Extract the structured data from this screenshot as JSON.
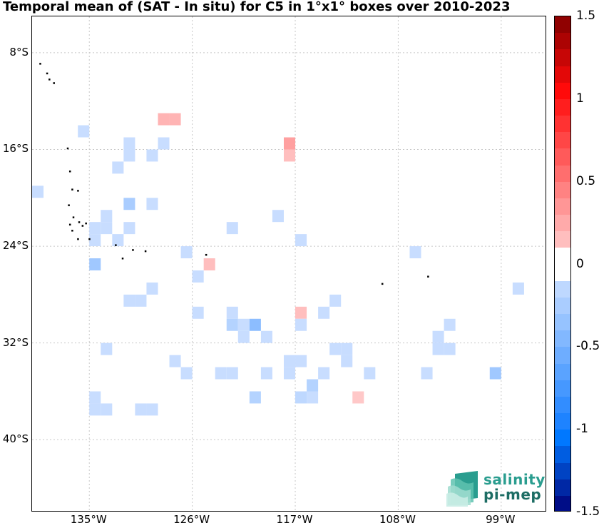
{
  "title": "Temporal mean of (SAT - In situ) for C5 in 1°x1° boxes over 2010-2023",
  "map": {
    "lon_range": [
      -140,
      -95
    ],
    "lat_range": [
      -46,
      -5
    ],
    "y_ticks": [
      {
        "lat": -8,
        "label": "8°S"
      },
      {
        "lat": -16,
        "label": "16°S"
      },
      {
        "lat": -24,
        "label": "24°S"
      },
      {
        "lat": -32,
        "label": "32°S"
      },
      {
        "lat": -40,
        "label": "40°S"
      }
    ],
    "x_ticks": [
      {
        "lon": -135,
        "label": "135°W"
      },
      {
        "lon": -126,
        "label": "126°W"
      },
      {
        "lon": -117,
        "label": "117°W"
      },
      {
        "lon": -108,
        "label": "108°W"
      },
      {
        "lon": -99,
        "label": "99°W"
      }
    ],
    "grid": true,
    "boxes": [
      {
        "lon": -128.5,
        "lat": -13.5,
        "value": 0.2
      },
      {
        "lon": -127.5,
        "lat": -13.5,
        "value": 0.2
      },
      {
        "lon": -135.5,
        "lat": -14.5,
        "value": -0.1
      },
      {
        "lon": -117.5,
        "lat": -15.5,
        "value": 0.3
      },
      {
        "lon": -117.5,
        "lat": -16.5,
        "value": 0.15
      },
      {
        "lon": -128.5,
        "lat": -15.5,
        "value": -0.1
      },
      {
        "lon": -131.5,
        "lat": -15.5,
        "value": -0.1
      },
      {
        "lon": -129.5,
        "lat": -16.5,
        "value": -0.1
      },
      {
        "lon": -131.5,
        "lat": -16.5,
        "value": -0.1
      },
      {
        "lon": -132.5,
        "lat": -17.5,
        "value": -0.1
      },
      {
        "lon": -139.5,
        "lat": -19.5,
        "value": -0.1
      },
      {
        "lon": -131.5,
        "lat": -20.5,
        "value": -0.25
      },
      {
        "lon": -129.5,
        "lat": -20.5,
        "value": -0.1
      },
      {
        "lon": -133.5,
        "lat": -21.5,
        "value": -0.1
      },
      {
        "lon": -118.5,
        "lat": -21.5,
        "value": -0.1
      },
      {
        "lon": -134.5,
        "lat": -22.5,
        "value": -0.1
      },
      {
        "lon": -133.5,
        "lat": -22.5,
        "value": -0.1
      },
      {
        "lon": -131.5,
        "lat": -22.5,
        "value": -0.1
      },
      {
        "lon": -122.5,
        "lat": -22.5,
        "value": -0.1
      },
      {
        "lon": -134.5,
        "lat": -23.5,
        "value": -0.1
      },
      {
        "lon": -132.5,
        "lat": -23.5,
        "value": -0.1
      },
      {
        "lon": -116.5,
        "lat": -23.5,
        "value": -0.1
      },
      {
        "lon": -126.5,
        "lat": -24.5,
        "value": -0.1
      },
      {
        "lon": -106.5,
        "lat": -24.5,
        "value": -0.1
      },
      {
        "lon": -134.5,
        "lat": -25.5,
        "value": -0.3
      },
      {
        "lon": -124.5,
        "lat": -25.5,
        "value": 0.15
      },
      {
        "lon": -125.5,
        "lat": -26.5,
        "value": -0.1
      },
      {
        "lon": -129.5,
        "lat": -27.5,
        "value": -0.1
      },
      {
        "lon": -97.5,
        "lat": -27.5,
        "value": -0.1
      },
      {
        "lon": -131.5,
        "lat": -28.5,
        "value": -0.1
      },
      {
        "lon": -130.5,
        "lat": -28.5,
        "value": -0.1
      },
      {
        "lon": -113.5,
        "lat": -28.5,
        "value": -0.1
      },
      {
        "lon": -125.5,
        "lat": -29.5,
        "value": -0.1
      },
      {
        "lon": -122.5,
        "lat": -29.5,
        "value": -0.1
      },
      {
        "lon": -116.5,
        "lat": -29.5,
        "value": 0.15
      },
      {
        "lon": -114.5,
        "lat": -29.5,
        "value": -0.1
      },
      {
        "lon": -122.5,
        "lat": -30.5,
        "value": -0.2
      },
      {
        "lon": -121.5,
        "lat": -30.5,
        "value": -0.1
      },
      {
        "lon": -120.5,
        "lat": -30.5,
        "value": -0.4
      },
      {
        "lon": -116.5,
        "lat": -30.5,
        "value": -0.1
      },
      {
        "lon": -103.5,
        "lat": -30.5,
        "value": -0.1
      },
      {
        "lon": -121.5,
        "lat": -31.5,
        "value": -0.1
      },
      {
        "lon": -119.5,
        "lat": -31.5,
        "value": -0.1
      },
      {
        "lon": -104.5,
        "lat": -31.5,
        "value": -0.1
      },
      {
        "lon": -133.5,
        "lat": -32.5,
        "value": -0.1
      },
      {
        "lon": -113.5,
        "lat": -32.5,
        "value": -0.1
      },
      {
        "lon": -112.5,
        "lat": -32.5,
        "value": -0.1
      },
      {
        "lon": -104.5,
        "lat": -32.5,
        "value": -0.1
      },
      {
        "lon": -103.5,
        "lat": -32.5,
        "value": -0.1
      },
      {
        "lon": -127.5,
        "lat": -33.5,
        "value": -0.1
      },
      {
        "lon": -117.5,
        "lat": -33.5,
        "value": -0.1
      },
      {
        "lon": -116.5,
        "lat": -33.5,
        "value": -0.1
      },
      {
        "lon": -112.5,
        "lat": -33.5,
        "value": -0.1
      },
      {
        "lon": -126.5,
        "lat": -34.5,
        "value": -0.1
      },
      {
        "lon": -123.5,
        "lat": -34.5,
        "value": -0.1
      },
      {
        "lon": -122.5,
        "lat": -34.5,
        "value": -0.1
      },
      {
        "lon": -119.5,
        "lat": -34.5,
        "value": -0.1
      },
      {
        "lon": -117.5,
        "lat": -34.5,
        "value": -0.1
      },
      {
        "lon": -114.5,
        "lat": -34.5,
        "value": -0.1
      },
      {
        "lon": -110.5,
        "lat": -34.5,
        "value": -0.1
      },
      {
        "lon": -105.5,
        "lat": -34.5,
        "value": -0.1
      },
      {
        "lon": -99.5,
        "lat": -34.5,
        "value": -0.3
      },
      {
        "lon": -115.5,
        "lat": -35.5,
        "value": -0.2
      },
      {
        "lon": -134.5,
        "lat": -36.5,
        "value": -0.1
      },
      {
        "lon": -120.5,
        "lat": -36.5,
        "value": -0.2
      },
      {
        "lon": -116.5,
        "lat": -36.5,
        "value": -0.15
      },
      {
        "lon": -115.5,
        "lat": -36.5,
        "value": -0.1
      },
      {
        "lon": -111.5,
        "lat": -36.5,
        "value": 0.1
      },
      {
        "lon": -134.5,
        "lat": -37.5,
        "value": -0.1
      },
      {
        "lon": -133.5,
        "lat": -37.5,
        "value": -0.1
      },
      {
        "lon": -130.5,
        "lat": -37.5,
        "value": -0.1
      },
      {
        "lon": -129.5,
        "lat": -37.5,
        "value": -0.1
      }
    ],
    "land_dots": [
      [
        -139.3,
        -8.9
      ],
      [
        -138.7,
        -9.7
      ],
      [
        -138.5,
        -10.2
      ],
      [
        -138.1,
        -10.5
      ],
      [
        -136.9,
        -15.9
      ],
      [
        -136.7,
        -17.8
      ],
      [
        -136.5,
        -19.3
      ],
      [
        -136.0,
        -19.4
      ],
      [
        -136.8,
        -20.6
      ],
      [
        -136.4,
        -21.6
      ],
      [
        -136.7,
        -22.2
      ],
      [
        -136.5,
        -22.7
      ],
      [
        -135.9,
        -22.0
      ],
      [
        -135.6,
        -22.3
      ],
      [
        -135.3,
        -22.1
      ],
      [
        -136.0,
        -23.4
      ],
      [
        -135.0,
        -23.4
      ],
      [
        -132.7,
        -23.9
      ],
      [
        -131.2,
        -24.3
      ],
      [
        -130.1,
        -24.4
      ],
      [
        -132.1,
        -25.0
      ],
      [
        -124.8,
        -24.7
      ],
      [
        -109.4,
        -27.1
      ],
      [
        -105.4,
        -26.5
      ]
    ]
  },
  "colorbar": {
    "min": -1.5,
    "max": 1.5,
    "step": 0.1,
    "tick_labels": [
      {
        "value": 1.5,
        "label": "1.5"
      },
      {
        "value": 1,
        "label": "1"
      },
      {
        "value": 0.5,
        "label": "0.5"
      },
      {
        "value": 0,
        "label": "0"
      },
      {
        "value": -0.5,
        "label": "-0.5"
      },
      {
        "value": -1,
        "label": "-1"
      },
      {
        "value": -1.5,
        "label": "-1.5"
      }
    ]
  },
  "logo": {
    "line1": "salinity",
    "line2": "pi-mep"
  }
}
